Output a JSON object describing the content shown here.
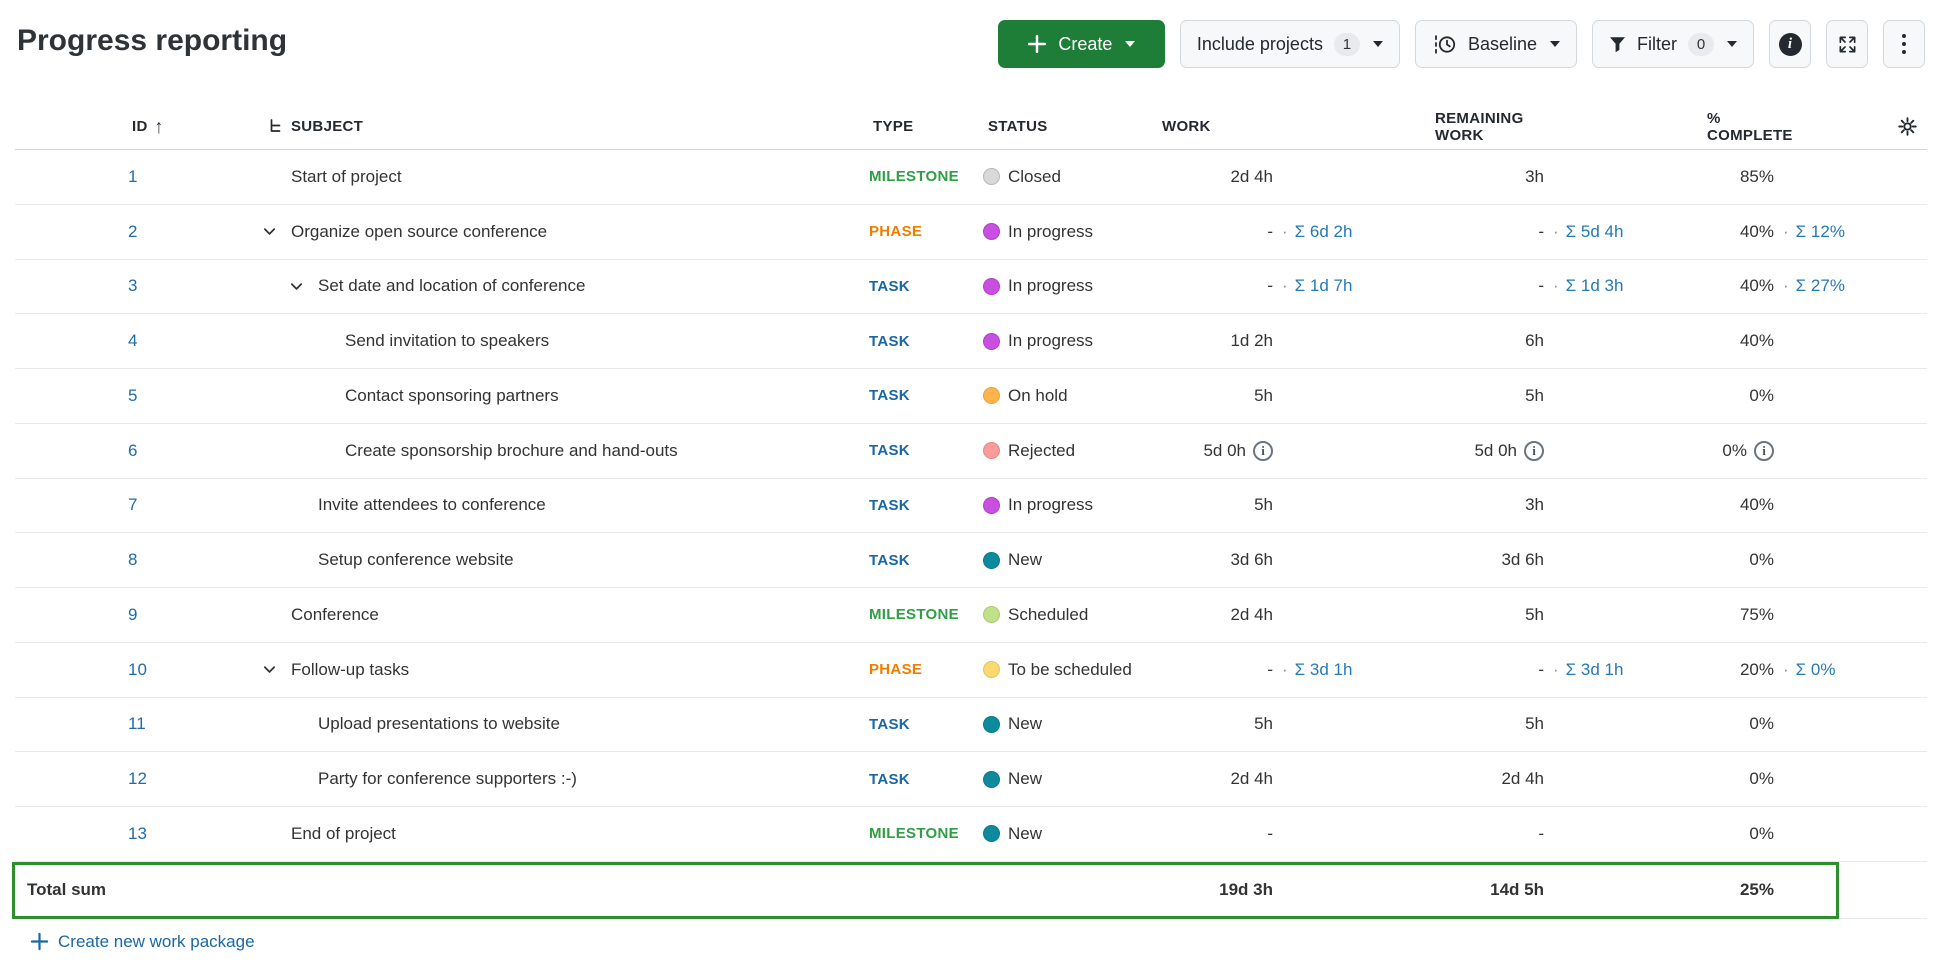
{
  "page": {
    "title": "Progress reporting"
  },
  "toolbar": {
    "create_label": "Create",
    "include_projects_label": "Include projects",
    "include_projects_count": "1",
    "baseline_label": "Baseline",
    "filter_label": "Filter",
    "filter_count": "0"
  },
  "table": {
    "sort": {
      "column": "ID",
      "direction": "ascending"
    },
    "columns": {
      "id": "ID",
      "subject": "SUBJECT",
      "type": "TYPE",
      "status": "STATUS",
      "work": "WORK",
      "remaining_work": "REMAINING WORK",
      "percent_complete": "% COMPLETE"
    },
    "rows": [
      {
        "id": "1",
        "indent": 0,
        "chevron": false,
        "subject": "Start of project",
        "type": "MILESTONE",
        "status": "Closed",
        "work": {
          "val": "2d 4h"
        },
        "remaining": {
          "val": "3h"
        },
        "percent": {
          "val": "85%"
        }
      },
      {
        "id": "2",
        "indent": 0,
        "chevron": true,
        "subject": "Organize open source conference",
        "type": "PHASE",
        "status": "In progress",
        "work": {
          "val": "-",
          "sum": "Σ 6d 2h"
        },
        "remaining": {
          "val": "-",
          "sum": "Σ 5d 4h"
        },
        "percent": {
          "val": "40%",
          "sum": "Σ 12%"
        }
      },
      {
        "id": "3",
        "indent": 1,
        "chevron": true,
        "subject": "Set date and location of conference",
        "type": "TASK",
        "status": "In progress",
        "work": {
          "val": "-",
          "sum": "Σ 1d 7h"
        },
        "remaining": {
          "val": "-",
          "sum": "Σ 1d 3h"
        },
        "percent": {
          "val": "40%",
          "sum": "Σ 27%"
        }
      },
      {
        "id": "4",
        "indent": 2,
        "chevron": false,
        "subject": "Send invitation to speakers",
        "type": "TASK",
        "status": "In progress",
        "work": {
          "val": "1d 2h"
        },
        "remaining": {
          "val": "6h"
        },
        "percent": {
          "val": "40%"
        }
      },
      {
        "id": "5",
        "indent": 2,
        "chevron": false,
        "subject": "Contact sponsoring partners",
        "type": "TASK",
        "status": "On hold",
        "work": {
          "val": "5h"
        },
        "remaining": {
          "val": "5h"
        },
        "percent": {
          "val": "0%"
        }
      },
      {
        "id": "6",
        "indent": 2,
        "chevron": false,
        "subject": "Create sponsorship brochure and hand-outs",
        "type": "TASK",
        "status": "Rejected",
        "work": {
          "val": "5d 0h",
          "info": true
        },
        "remaining": {
          "val": "5d 0h",
          "info": true
        },
        "percent": {
          "val": "0%",
          "info": true
        }
      },
      {
        "id": "7",
        "indent": 1,
        "chevron": false,
        "subject": "Invite attendees to conference",
        "type": "TASK",
        "status": "In progress",
        "work": {
          "val": "5h"
        },
        "remaining": {
          "val": "3h"
        },
        "percent": {
          "val": "40%"
        }
      },
      {
        "id": "8",
        "indent": 1,
        "chevron": false,
        "subject": "Setup conference website",
        "type": "TASK",
        "status": "New",
        "work": {
          "val": "3d 6h"
        },
        "remaining": {
          "val": "3d 6h"
        },
        "percent": {
          "val": "0%"
        }
      },
      {
        "id": "9",
        "indent": 0,
        "chevron": false,
        "subject": "Conference",
        "type": "MILESTONE",
        "status": "Scheduled",
        "work": {
          "val": "2d 4h"
        },
        "remaining": {
          "val": "5h"
        },
        "percent": {
          "val": "75%"
        }
      },
      {
        "id": "10",
        "indent": 0,
        "chevron": true,
        "subject": "Follow-up tasks",
        "type": "PHASE",
        "status": "To be scheduled",
        "work": {
          "val": "-",
          "sum": "Σ 3d 1h"
        },
        "remaining": {
          "val": "-",
          "sum": "Σ 3d 1h"
        },
        "percent": {
          "val": "20%",
          "sum": "Σ 0%"
        }
      },
      {
        "id": "11",
        "indent": 1,
        "chevron": false,
        "subject": "Upload presentations to website",
        "type": "TASK",
        "status": "New",
        "work": {
          "val": "5h"
        },
        "remaining": {
          "val": "5h"
        },
        "percent": {
          "val": "0%"
        }
      },
      {
        "id": "12",
        "indent": 1,
        "chevron": false,
        "subject": "Party for conference supporters :-)",
        "type": "TASK",
        "status": "New",
        "work": {
          "val": "2d 4h"
        },
        "remaining": {
          "val": "2d 4h"
        },
        "percent": {
          "val": "0%"
        }
      },
      {
        "id": "13",
        "indent": 0,
        "chevron": false,
        "subject": "End of project",
        "type": "MILESTONE",
        "status": "New",
        "work": {
          "val": "-"
        },
        "remaining": {
          "val": "-"
        },
        "percent": {
          "val": "0%"
        }
      }
    ],
    "total": {
      "label": "Total sum",
      "work": "19d 3h",
      "remaining_work": "14d 5h",
      "percent_complete": "25%"
    },
    "create_link": "Create new work package"
  },
  "colors": {
    "create_button": "#1e7d36",
    "total_border_green": "#2f8f2f",
    "id_link_blue": "#1f6ca9",
    "sum_link_blue": "#2579b5",
    "type": {
      "MILESTONE": "#2f9e44",
      "PHASE": "#ef7d00",
      "TASK": "#1a67a3"
    },
    "status": {
      "Closed": {
        "bg": "#d9d9d9",
        "border": "#b7b7b7"
      },
      "In progress": {
        "bg": "#c94fe0",
        "border": "#b23ecb"
      },
      "On hold": {
        "bg": "#fdb44d",
        "border": "#eda23c"
      },
      "Rejected": {
        "bg": "#f89c9c",
        "border": "#ec8686"
      },
      "New": {
        "bg": "#0e8a9d",
        "border": "#0c7a8b"
      },
      "Scheduled": {
        "bg": "#c1e089",
        "border": "#a9cd6d"
      },
      "To be scheduled": {
        "bg": "#f8da70",
        "border": "#e8c455"
      }
    }
  }
}
